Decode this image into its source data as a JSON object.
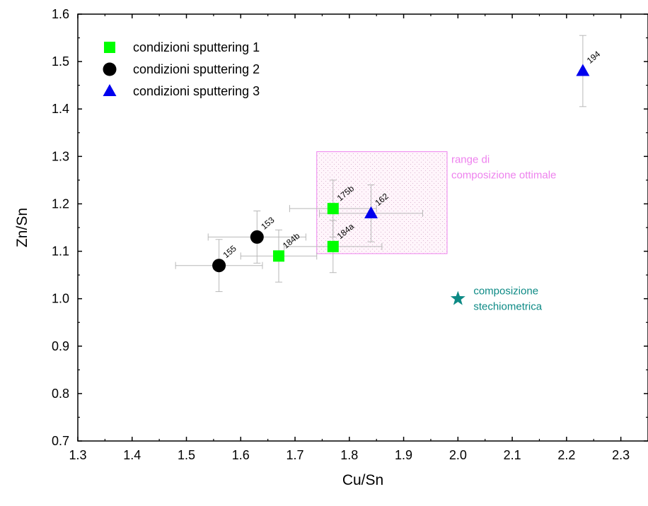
{
  "chart_data": {
    "type": "scatter",
    "xlabel": "Cu/Sn",
    "ylabel": "Zn/Sn",
    "xlim": [
      1.3,
      2.35
    ],
    "ylim": [
      0.7,
      1.6
    ],
    "xticks": [
      "1.3",
      "1.4",
      "1.5",
      "1.6",
      "1.7",
      "1.8",
      "1.9",
      "2.0",
      "2.1",
      "2.2",
      "2.3"
    ],
    "yticks": [
      "0.7",
      "0.8",
      "0.9",
      "1.0",
      "1.1",
      "1.2",
      "1.3",
      "1.4",
      "1.5",
      "1.6"
    ],
    "legend_position": "top-left",
    "series": [
      {
        "name": "condizioni sputtering 1",
        "marker": "square",
        "color": "#00ff00",
        "points": [
          {
            "x": 1.67,
            "y": 1.09,
            "label": "184b",
            "xerr": 0.07,
            "yerr": 0.055
          },
          {
            "x": 1.77,
            "y": 1.19,
            "label": "175b",
            "xerr": 0.08,
            "yerr": 0.06
          },
          {
            "x": 1.77,
            "y": 1.11,
            "label": "184a",
            "xerr": 0.09,
            "yerr": 0.055
          }
        ]
      },
      {
        "name": "condizioni sputtering 2",
        "marker": "circle",
        "color": "#000000",
        "points": [
          {
            "x": 1.56,
            "y": 1.07,
            "label": "155",
            "xerr": 0.08,
            "yerr": 0.055
          },
          {
            "x": 1.63,
            "y": 1.13,
            "label": "153",
            "xerr": 0.09,
            "yerr": 0.055
          }
        ]
      },
      {
        "name": "condizioni sputtering 3",
        "marker": "triangle",
        "color": "#0000ee",
        "points": [
          {
            "x": 1.84,
            "y": 1.18,
            "label": "162",
            "xerr": 0.095,
            "yerr": 0.06
          },
          {
            "x": 2.23,
            "y": 1.48,
            "label": "194",
            "xerr": 0,
            "yerr": 0.075
          }
        ]
      }
    ],
    "annotations": [
      {
        "kind": "region",
        "x_range": [
          1.74,
          1.98
        ],
        "y_range": [
          1.095,
          1.31
        ],
        "color": "#ee82ee",
        "text_lines": [
          "range di",
          "composizione ottimale"
        ]
      },
      {
        "kind": "point",
        "marker": "star",
        "color": "#0d8a85",
        "x": 2.0,
        "y": 1.0,
        "text_lines": [
          "composizione",
          "stechiometrica"
        ]
      }
    ]
  }
}
